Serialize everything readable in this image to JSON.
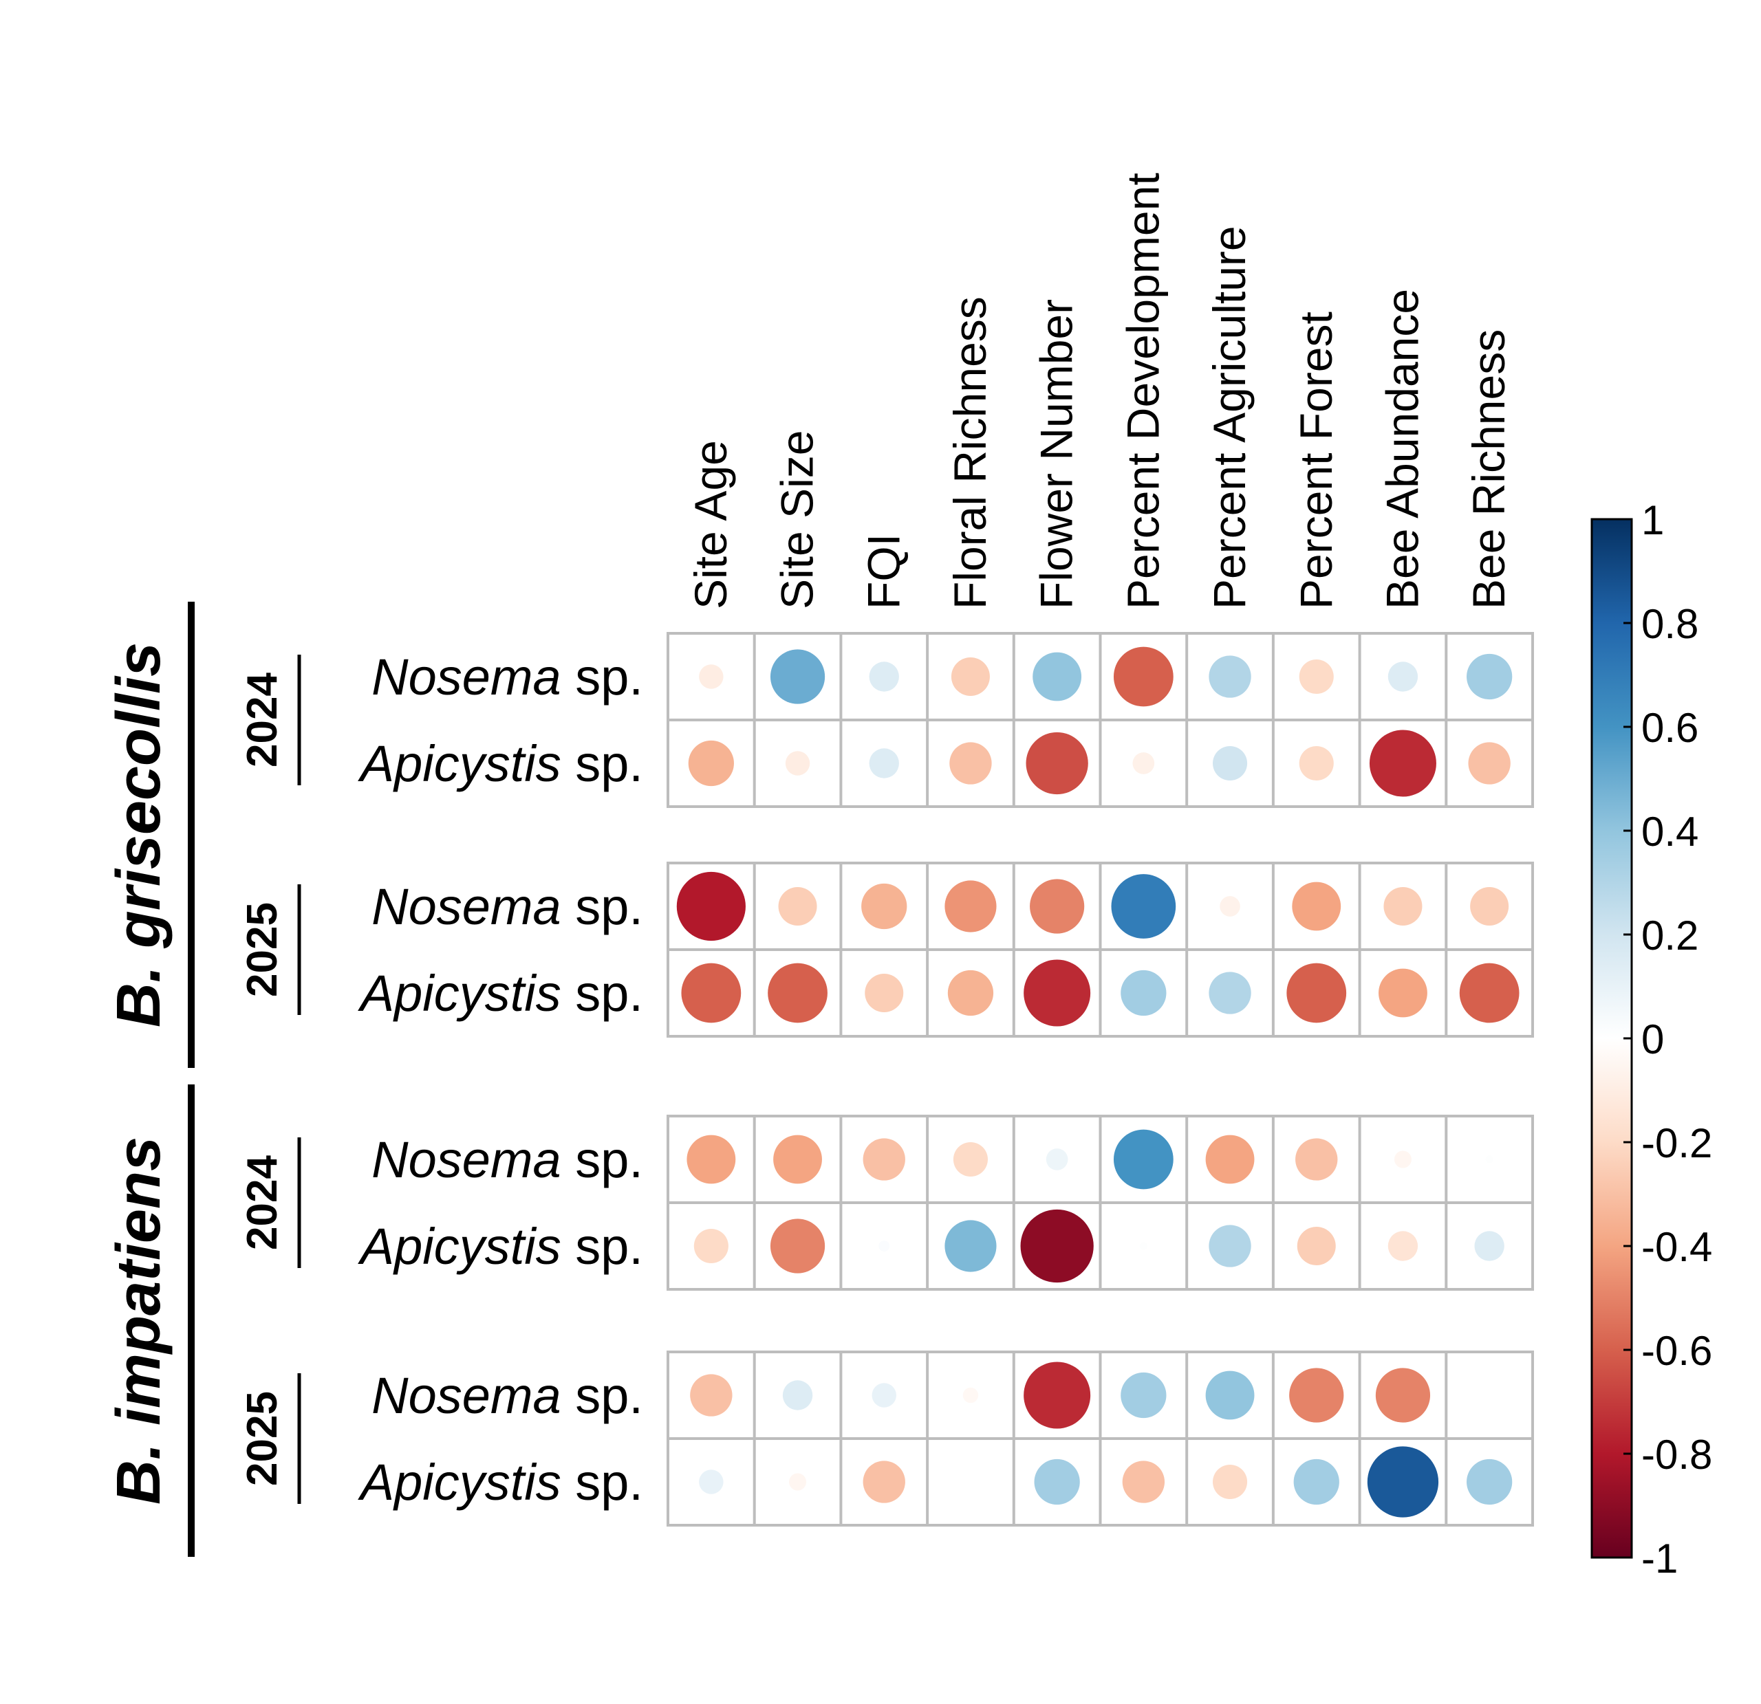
{
  "chart_data": {
    "type": "heatmap",
    "columns": [
      "Site Age",
      "Site Size",
      "FQI",
      "Floral Richness",
      "Flower Number",
      "Percent Development",
      "Percent Agriculture",
      "Percent Forest",
      "Bee Abundance",
      "Bee Richness"
    ],
    "groups": [
      {
        "species": "B. grisecollis",
        "years": [
          {
            "year": "2024",
            "rows": [
              {
                "label_italic": "Nosema",
                "label_rest": " sp.",
                "values": [
                  -0.1,
                  0.5,
                  0.15,
                  -0.25,
                  0.4,
                  -0.6,
                  0.3,
                  -0.2,
                  0.15,
                  0.35
                ]
              },
              {
                "label_italic": "Apicystis",
                "label_rest": " sp.",
                "values": [
                  -0.35,
                  -0.1,
                  0.15,
                  -0.3,
                  -0.65,
                  -0.08,
                  0.2,
                  -0.2,
                  -0.75,
                  -0.3
                ]
              }
            ]
          },
          {
            "year": "2025",
            "rows": [
              {
                "label_italic": "Nosema",
                "label_rest": " sp.",
                "values": [
                  -0.8,
                  -0.25,
                  -0.35,
                  -0.45,
                  -0.5,
                  0.7,
                  -0.07,
                  -0.4,
                  -0.25,
                  -0.25
                ]
              },
              {
                "label_italic": "Apicystis",
                "label_rest": " sp.",
                "values": [
                  -0.6,
                  -0.6,
                  -0.25,
                  -0.35,
                  -0.75,
                  0.35,
                  0.3,
                  -0.6,
                  -0.4,
                  -0.6
                ]
              }
            ]
          }
        ]
      },
      {
        "species": "B. impatiens",
        "years": [
          {
            "year": "2024",
            "rows": [
              {
                "label_italic": "Nosema",
                "label_rest": " sp.",
                "values": [
                  -0.4,
                  -0.4,
                  -0.3,
                  -0.2,
                  0.08,
                  0.6,
                  -0.4,
                  -0.3,
                  -0.05,
                  0.01
                ]
              },
              {
                "label_italic": "Apicystis",
                "label_rest": " sp.",
                "values": [
                  -0.2,
                  -0.5,
                  0.02,
                  0.45,
                  -0.9,
                  0.01,
                  0.3,
                  -0.25,
                  -0.15,
                  0.15
                ]
              }
            ]
          },
          {
            "year": "2025",
            "rows": [
              {
                "label_italic": "Nosema",
                "label_rest": " sp.",
                "values": [
                  -0.3,
                  0.15,
                  0.1,
                  -0.04,
                  -0.75,
                  0.35,
                  0.4,
                  -0.5,
                  -0.5,
                  0
                ]
              },
              {
                "label_italic": "Apicystis",
                "label_rest": " sp.",
                "values": [
                  0.1,
                  -0.05,
                  -0.3,
                  0,
                  0.35,
                  -0.3,
                  -0.2,
                  0.35,
                  0.85,
                  0.35
                ]
              }
            ]
          }
        ]
      }
    ],
    "colorbar": {
      "range": [
        -1,
        1
      ],
      "ticks": [
        "1",
        "0.8",
        "0.6",
        "0.4",
        "0.2",
        "0",
        "-0.2",
        "-0.4",
        "-0.6",
        "-0.8",
        "-1"
      ],
      "palette": [
        "#67001F",
        "#B2182B",
        "#D6604D",
        "#F4A582",
        "#FDDBC7",
        "#FFFFFF",
        "#D1E5F0",
        "#92C5DE",
        "#4393C3",
        "#2166AC",
        "#053061"
      ]
    },
    "grid": true
  }
}
